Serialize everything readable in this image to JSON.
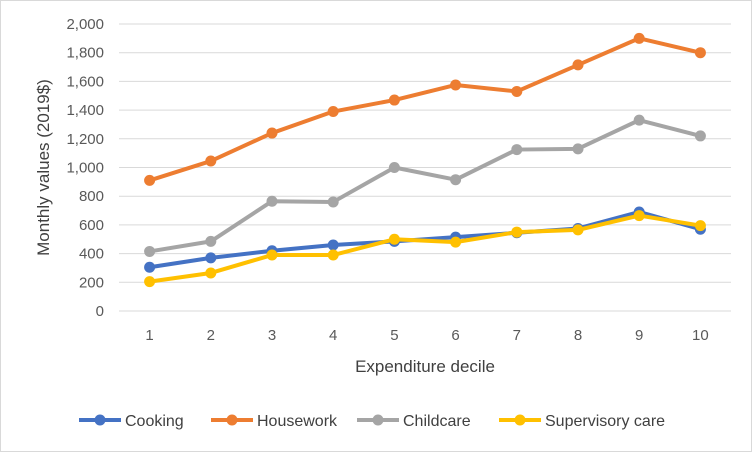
{
  "chart_data": {
    "type": "line",
    "title": "",
    "xlabel": "Expenditure decile",
    "ylabel": "Monthly values (2019$)",
    "categories": [
      "1",
      "2",
      "3",
      "4",
      "5",
      "6",
      "7",
      "8",
      "9",
      "10"
    ],
    "ylim": [
      0,
      2000
    ],
    "yticks": [
      "0",
      "200",
      "400",
      "600",
      "800",
      "1,000",
      "1,200",
      "1,400",
      "1,600",
      "1,800",
      "2,000"
    ],
    "grid": true,
    "legend_position": "bottom",
    "series": [
      {
        "name": "Cooking",
        "color": "#4472C4",
        "values": [
          305,
          370,
          420,
          460,
          485,
          515,
          545,
          575,
          690,
          570
        ]
      },
      {
        "name": "Housework",
        "color": "#ED7D31",
        "values": [
          910,
          1045,
          1240,
          1390,
          1470,
          1575,
          1530,
          1715,
          1900,
          1800
        ]
      },
      {
        "name": "Childcare",
        "color": "#A5A5A5",
        "values": [
          415,
          485,
          765,
          760,
          1000,
          915,
          1125,
          1130,
          1330,
          1220
        ]
      },
      {
        "name": "Supervisory care",
        "color": "#FFC000",
        "values": [
          205,
          265,
          390,
          390,
          500,
          480,
          550,
          565,
          665,
          595
        ]
      }
    ]
  }
}
